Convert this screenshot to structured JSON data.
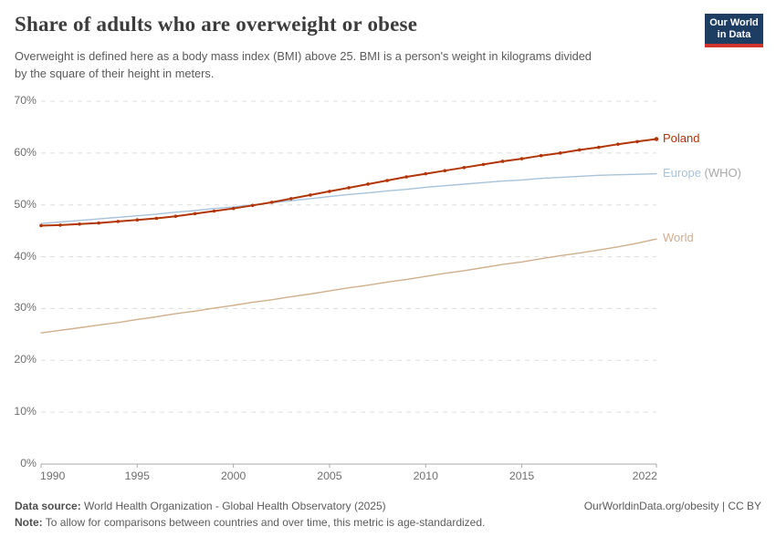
{
  "header": {
    "title": "Share of adults who are overweight or obese",
    "subtitle_line1": "Overweight is defined here as a body mass index (BMI) above 25. BMI is a person's weight in kilograms divided",
    "subtitle_line2": "by the square of their height in meters.",
    "logo_line1": "Our World",
    "logo_line2": "in Data"
  },
  "chart_data": {
    "type": "line",
    "title": "Share of adults who are overweight or obese",
    "xlabel": "",
    "ylabel": "",
    "xlim": [
      1990,
      2022
    ],
    "ylim": [
      0,
      70
    ],
    "grid": "dashed-horizontal",
    "legend_position": "right-edge-labels",
    "y_ticks": [
      0,
      10,
      20,
      30,
      40,
      50,
      60,
      70
    ],
    "y_tick_suffix": "%",
    "x_ticks": [
      1990,
      1995,
      2000,
      2005,
      2010,
      2015,
      2022
    ],
    "x": [
      1990,
      1991,
      1992,
      1993,
      1994,
      1995,
      1996,
      1997,
      1998,
      1999,
      2000,
      2001,
      2002,
      2003,
      2004,
      2005,
      2006,
      2007,
      2008,
      2009,
      2010,
      2011,
      2012,
      2013,
      2014,
      2015,
      2016,
      2017,
      2018,
      2019,
      2020,
      2021,
      2022
    ],
    "series": [
      {
        "name": "World",
        "label": "World",
        "label_suffix": "",
        "color": "#d0af8d",
        "line_width": 1.4,
        "markers": false,
        "values": [
          25.3,
          25.8,
          26.3,
          26.8,
          27.3,
          27.9,
          28.4,
          29.0,
          29.5,
          30.1,
          30.6,
          31.2,
          31.7,
          32.3,
          32.8,
          33.4,
          34.0,
          34.5,
          35.1,
          35.6,
          36.2,
          36.8,
          37.3,
          37.9,
          38.5,
          39.0,
          39.6,
          40.2,
          40.7,
          41.3,
          41.9,
          42.6,
          43.4
        ]
      },
      {
        "name": "Europe (WHO)",
        "label": "Europe",
        "label_suffix": " (WHO)",
        "color": "#a7c3dc",
        "line_width": 1.4,
        "markers": false,
        "values": [
          46.4,
          46.7,
          47.0,
          47.3,
          47.6,
          47.9,
          48.2,
          48.6,
          48.9,
          49.3,
          49.6,
          50.0,
          50.4,
          50.8,
          51.2,
          51.6,
          52.0,
          52.3,
          52.7,
          53.0,
          53.4,
          53.7,
          54.0,
          54.3,
          54.6,
          54.8,
          55.1,
          55.3,
          55.5,
          55.7,
          55.8,
          55.9,
          56.0
        ]
      },
      {
        "name": "Poland",
        "label": "Poland",
        "label_suffix": "",
        "color": "#b13507",
        "line_width": 2,
        "markers": true,
        "values": [
          46.0,
          46.1,
          46.3,
          46.5,
          46.8,
          47.1,
          47.4,
          47.8,
          48.3,
          48.8,
          49.3,
          49.9,
          50.5,
          51.2,
          51.9,
          52.6,
          53.3,
          54.0,
          54.7,
          55.4,
          56.0,
          56.6,
          57.2,
          57.8,
          58.4,
          58.9,
          59.5,
          60.0,
          60.6,
          61.1,
          61.7,
          62.2,
          62.7
        ]
      }
    ],
    "style": {
      "grid_color": "#dddddd",
      "axis_color": "#a9a9a9",
      "tick_label_color": "#6e6e6e"
    }
  },
  "footer": {
    "datasource_label": "Data source:",
    "datasource_text": " World Health Organization - Global Health Observatory (2025)",
    "rights": "OurWorldinData.org/obesity | CC BY",
    "note_label": "Note:",
    "note_text": " To allow for comparisons between countries and over time, this metric is age-standardized."
  }
}
